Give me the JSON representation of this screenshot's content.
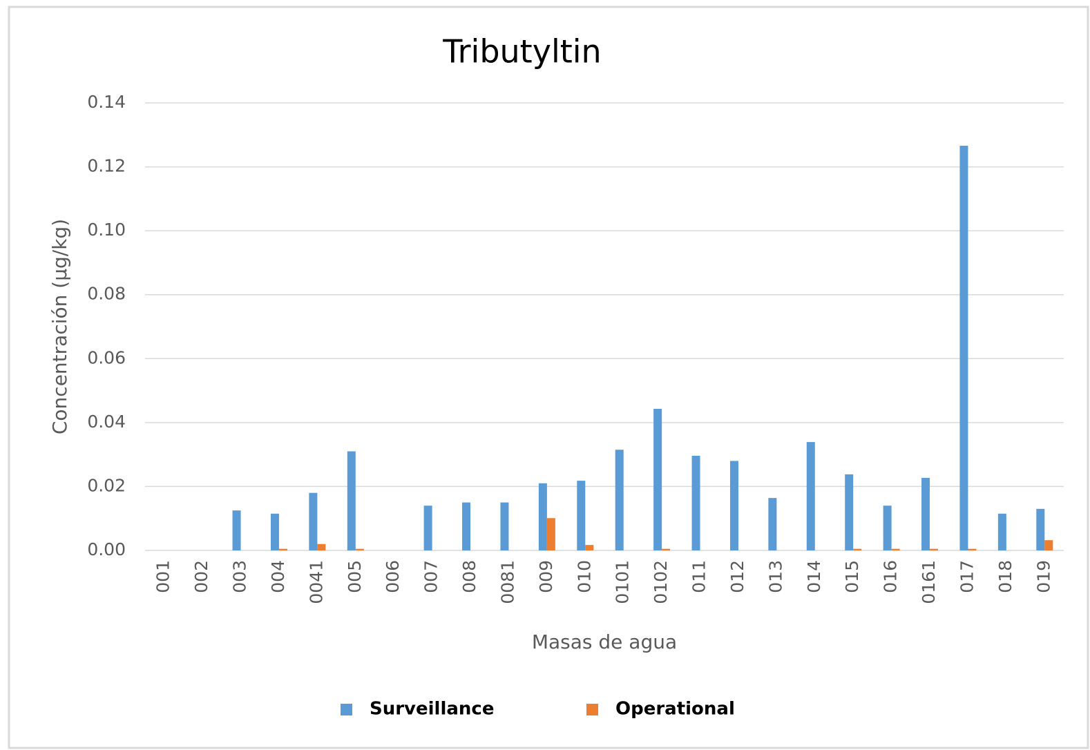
{
  "chart_data": {
    "type": "bar",
    "title": "Tributyltin",
    "x_label": "Masas de agua",
    "y_label": "Concentración (µg/kg)",
    "categories": [
      "001",
      "002",
      "003",
      "004",
      "0041",
      "005",
      "006",
      "007",
      "008",
      "0081",
      "009",
      "010",
      "0101",
      "0102",
      "011",
      "012",
      "013",
      "014",
      "015",
      "016",
      "0161",
      "017",
      "018",
      "019"
    ],
    "series": [
      {
        "name": "Surveillance",
        "color": "#5b9bd5",
        "values": [
          0,
          0,
          0.0125,
          0.0115,
          0.018,
          0.031,
          0,
          0.014,
          0.015,
          0.015,
          0.021,
          0.0218,
          0.0315,
          0.0443,
          0.0296,
          0.028,
          0.0164,
          0.0339,
          0.0238,
          0.014,
          0.0227,
          0.1266,
          0.0115,
          0.013
        ]
      },
      {
        "name": "Operational",
        "color": "#ed7d31",
        "values": [
          0,
          0,
          0,
          0.0005,
          0.002,
          0.0005,
          0,
          0,
          0,
          0,
          0.0101,
          0.0017,
          0,
          0.0005,
          0,
          0,
          0,
          0,
          0.0005,
          0.0005,
          0.0005,
          0.0005,
          0,
          0.0032
        ]
      }
    ],
    "ylim": [
      0,
      0.14
    ],
    "yticks": [
      {
        "value": 0,
        "label": "0.00"
      },
      {
        "value": 0.02,
        "label": "0.02"
      },
      {
        "value": 0.04,
        "label": "0.04"
      },
      {
        "value": 0.06,
        "label": "0.06"
      },
      {
        "value": 0.08,
        "label": "0.08"
      },
      {
        "value": 0.1,
        "label": "0.10"
      },
      {
        "value": 0.12,
        "label": "0.12"
      },
      {
        "value": 0.14,
        "label": "0.14"
      }
    ],
    "grid": true,
    "legend": "bottom"
  }
}
